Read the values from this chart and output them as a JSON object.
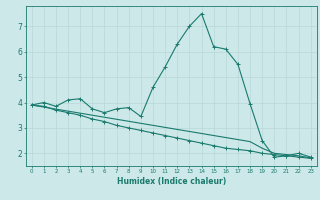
{
  "xlabel": "Humidex (Indice chaleur)",
  "bg_color": "#cce8e8",
  "line_color": "#1a7a6e",
  "grid_color": "#b8d8d8",
  "xlim": [
    -0.5,
    23.5
  ],
  "ylim": [
    1.5,
    7.8
  ],
  "yticks": [
    2,
    3,
    4,
    5,
    6,
    7
  ],
  "xticks": [
    0,
    1,
    2,
    3,
    4,
    5,
    6,
    7,
    8,
    9,
    10,
    11,
    12,
    13,
    14,
    15,
    16,
    17,
    18,
    19,
    20,
    21,
    22,
    23
  ],
  "series1": [
    [
      0,
      3.9
    ],
    [
      1,
      4.0
    ],
    [
      2,
      3.85
    ],
    [
      3,
      4.1
    ],
    [
      4,
      4.15
    ],
    [
      5,
      3.75
    ],
    [
      6,
      3.6
    ],
    [
      7,
      3.75
    ],
    [
      8,
      3.8
    ],
    [
      9,
      3.45
    ],
    [
      10,
      4.6
    ],
    [
      11,
      5.4
    ],
    [
      12,
      6.3
    ],
    [
      13,
      7.0
    ],
    [
      14,
      7.5
    ],
    [
      15,
      6.2
    ],
    [
      16,
      6.1
    ],
    [
      17,
      5.5
    ],
    [
      18,
      3.95
    ],
    [
      19,
      2.5
    ],
    [
      20,
      1.85
    ],
    [
      21,
      1.9
    ],
    [
      22,
      2.0
    ],
    [
      23,
      1.85
    ]
  ],
  "series2": [
    [
      0,
      3.9
    ],
    [
      1,
      3.85
    ],
    [
      2,
      3.7
    ],
    [
      3,
      3.6
    ],
    [
      4,
      3.5
    ],
    [
      5,
      3.35
    ],
    [
      6,
      3.25
    ],
    [
      7,
      3.1
    ],
    [
      8,
      3.0
    ],
    [
      9,
      2.9
    ],
    [
      10,
      2.8
    ],
    [
      11,
      2.7
    ],
    [
      12,
      2.6
    ],
    [
      13,
      2.5
    ],
    [
      14,
      2.4
    ],
    [
      15,
      2.3
    ],
    [
      16,
      2.2
    ],
    [
      17,
      2.15
    ],
    [
      18,
      2.1
    ],
    [
      19,
      2.0
    ],
    [
      20,
      1.95
    ],
    [
      21,
      1.9
    ],
    [
      22,
      1.85
    ],
    [
      23,
      1.8
    ]
  ],
  "series3": [
    [
      0,
      3.9
    ],
    [
      1,
      3.82
    ],
    [
      2,
      3.74
    ],
    [
      3,
      3.66
    ],
    [
      4,
      3.58
    ],
    [
      5,
      3.5
    ],
    [
      6,
      3.42
    ],
    [
      7,
      3.34
    ],
    [
      8,
      3.26
    ],
    [
      9,
      3.18
    ],
    [
      10,
      3.1
    ],
    [
      11,
      3.02
    ],
    [
      12,
      2.94
    ],
    [
      13,
      2.86
    ],
    [
      14,
      2.78
    ],
    [
      15,
      2.7
    ],
    [
      16,
      2.62
    ],
    [
      17,
      2.54
    ],
    [
      18,
      2.46
    ],
    [
      19,
      2.2
    ],
    [
      20,
      2.0
    ],
    [
      21,
      1.95
    ],
    [
      22,
      1.9
    ],
    [
      23,
      1.82
    ]
  ]
}
